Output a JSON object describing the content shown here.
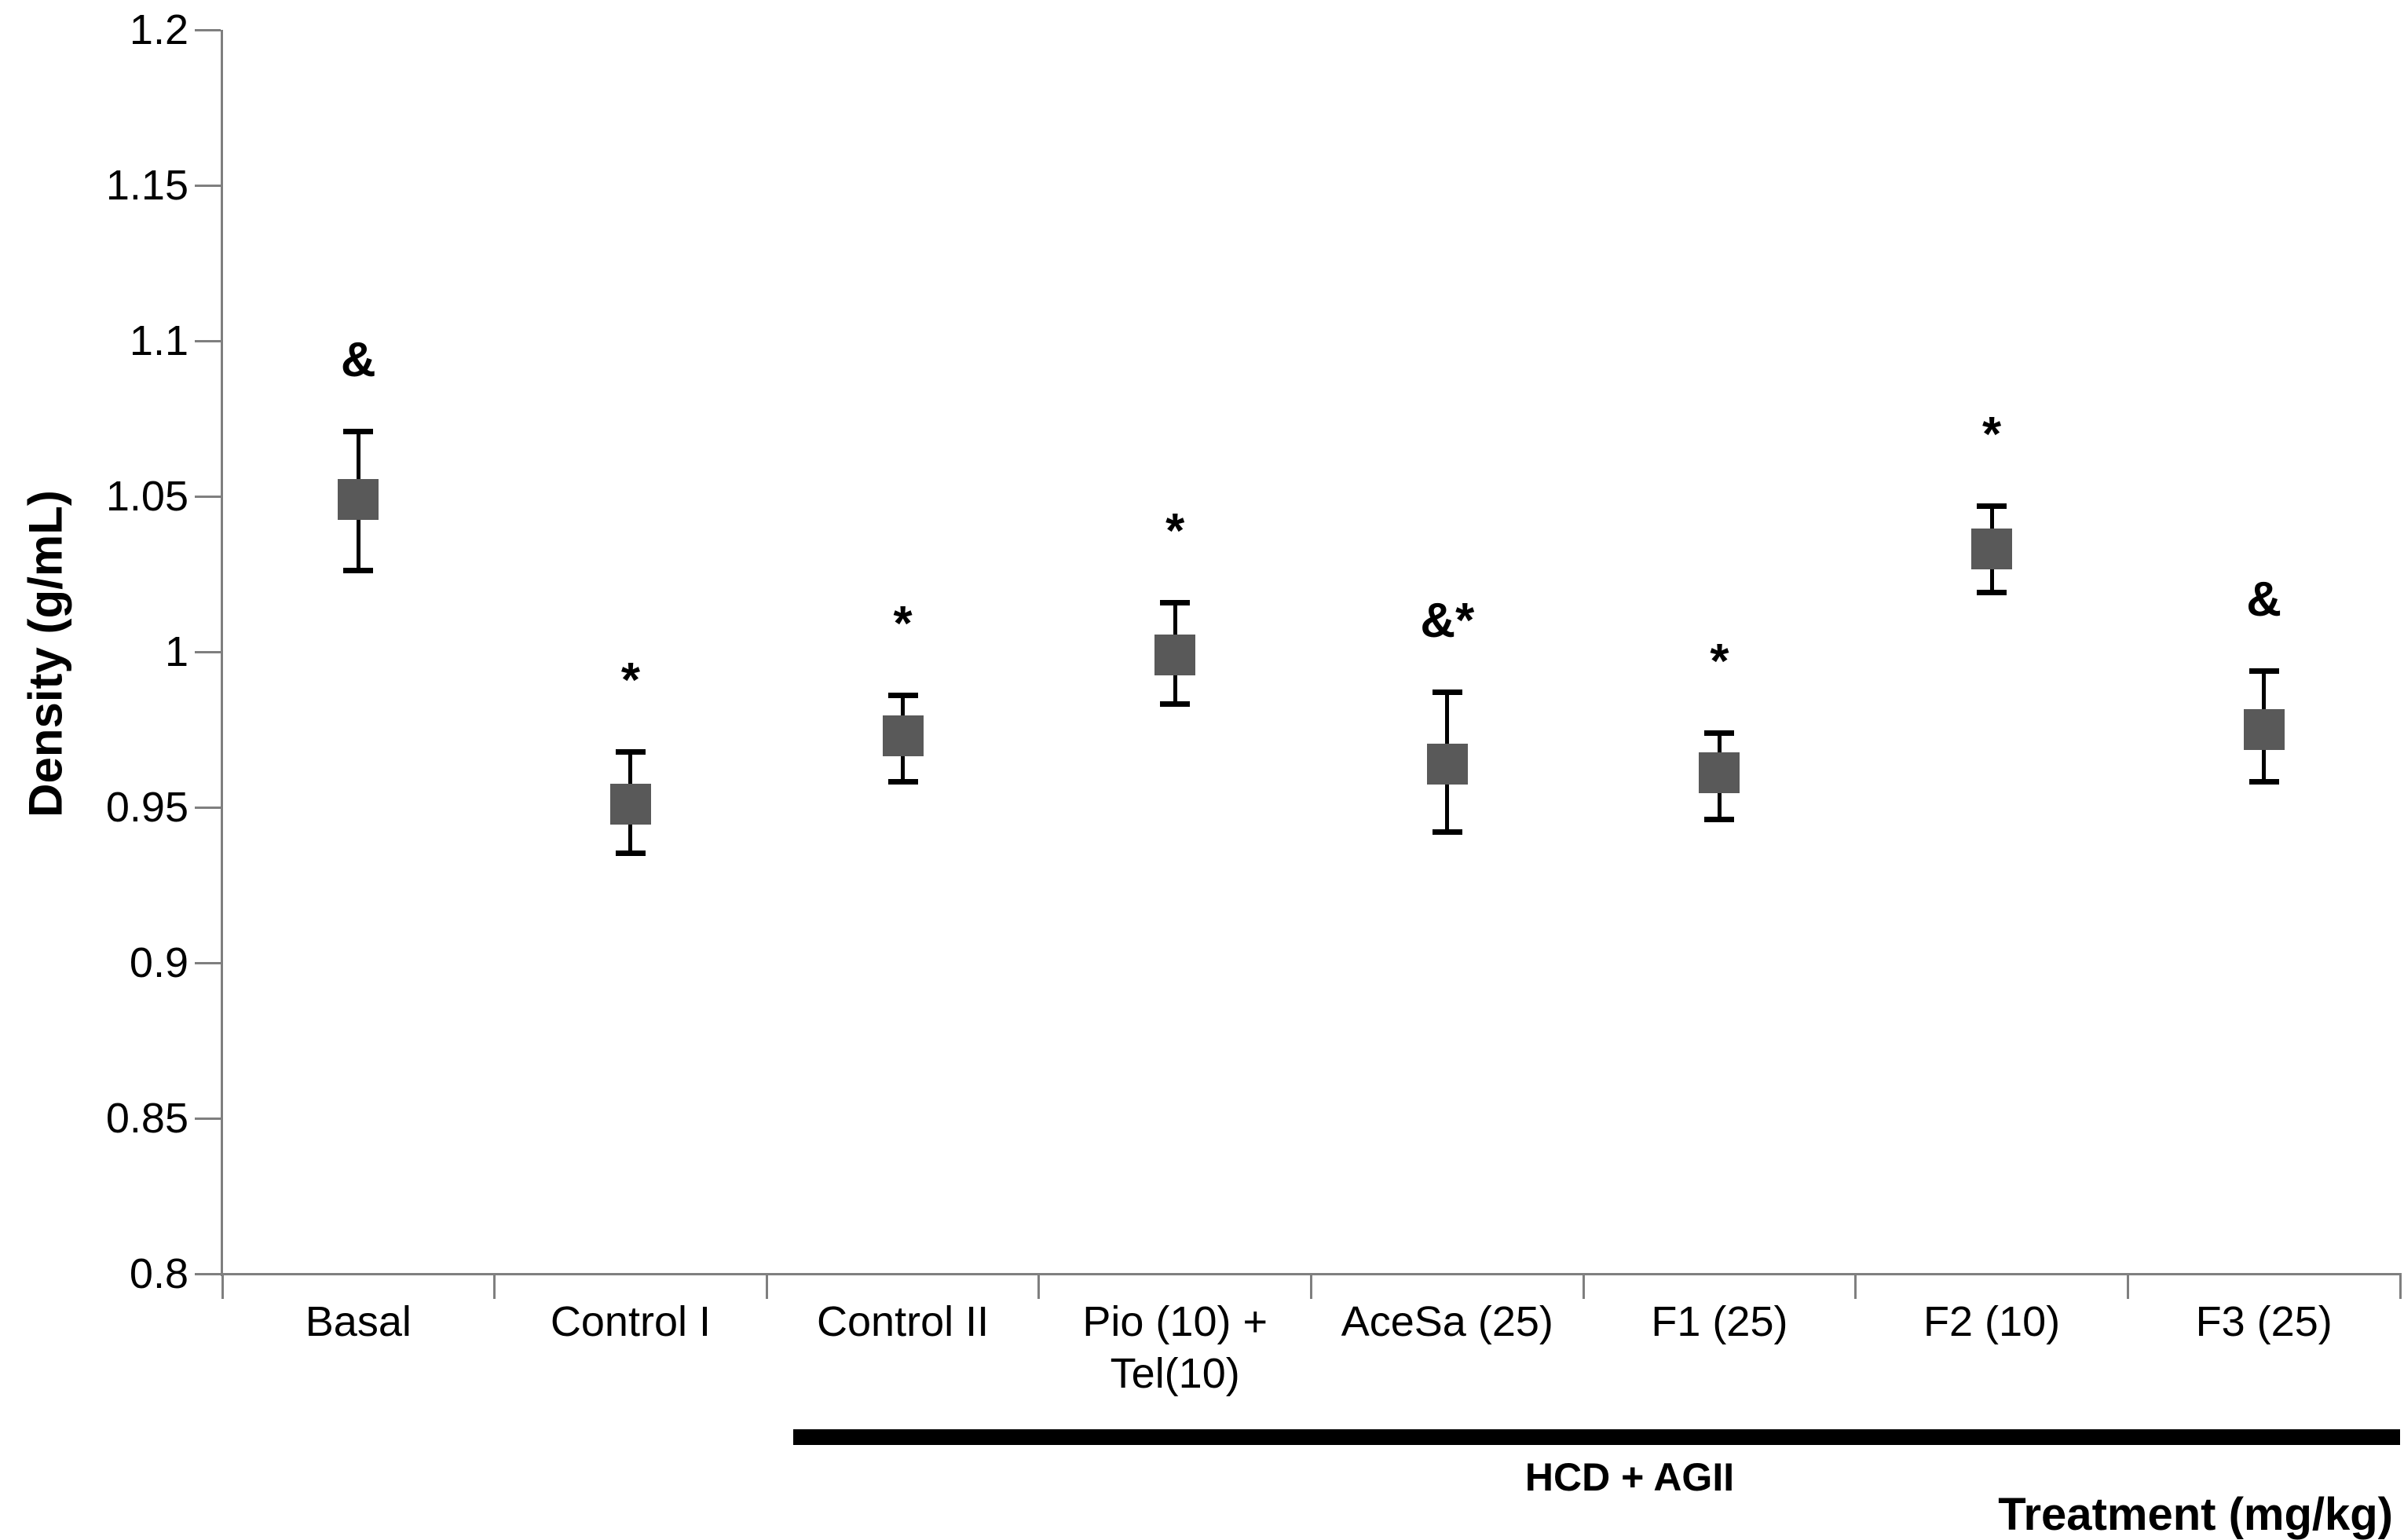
{
  "chart_data": {
    "type": "scatter",
    "title": "",
    "ylabel": "Density (g/mL)",
    "xlabel": "Treatment (mg/kg)",
    "ylim": [
      0.8,
      1.2
    ],
    "ytick_step": 0.05,
    "ytick_labels": [
      "1.2",
      "1.15",
      "1.1",
      "1.05",
      "1",
      "0.95",
      "0.9",
      "0.85",
      "0.8"
    ],
    "grid": false,
    "legend": null,
    "marker_shape": "square",
    "marker_color": "#595959",
    "error_bar_color": "#000000",
    "categories": [
      "Basal",
      "Control I",
      "Control II",
      "Pio (10) + Tel(10)",
      "AceSa (25)",
      "F1 (25)",
      "F2 (10)",
      "F3 (25)"
    ],
    "points": [
      {
        "label_lines": [
          "Basal"
        ],
        "value": 1.049,
        "err_up": 0.022,
        "err_down": 0.023,
        "annotation": "&"
      },
      {
        "label_lines": [
          "Control I"
        ],
        "value": 0.951,
        "err_up": 0.017,
        "err_down": 0.016,
        "annotation": "*"
      },
      {
        "label_lines": [
          "Control II"
        ],
        "value": 0.973,
        "err_up": 0.013,
        "err_down": 0.015,
        "annotation": "*"
      },
      {
        "label_lines": [
          "Pio (10) +",
          "Tel(10)"
        ],
        "value": 0.999,
        "err_up": 0.017,
        "err_down": 0.016,
        "annotation": "*"
      },
      {
        "label_lines": [
          "AceSa (25)"
        ],
        "value": 0.964,
        "err_up": 0.023,
        "err_down": 0.022,
        "annotation": "&*"
      },
      {
        "label_lines": [
          "F1 (25)"
        ],
        "value": 0.961,
        "err_up": 0.013,
        "err_down": 0.015,
        "annotation": "*"
      },
      {
        "label_lines": [
          "F2 (10)"
        ],
        "value": 1.033,
        "err_up": 0.014,
        "err_down": 0.014,
        "annotation": "*"
      },
      {
        "label_lines": [
          "F3 (25)"
        ],
        "value": 0.975,
        "err_up": 0.019,
        "err_down": 0.017,
        "annotation": "&"
      }
    ],
    "group_line": {
      "label": "HCD + AGII",
      "spans_categories": [
        "Control II",
        "Pio (10) + Tel(10)",
        "AceSa (25)",
        "F1 (25)",
        "F2 (10)",
        "F3 (25)"
      ]
    }
  }
}
